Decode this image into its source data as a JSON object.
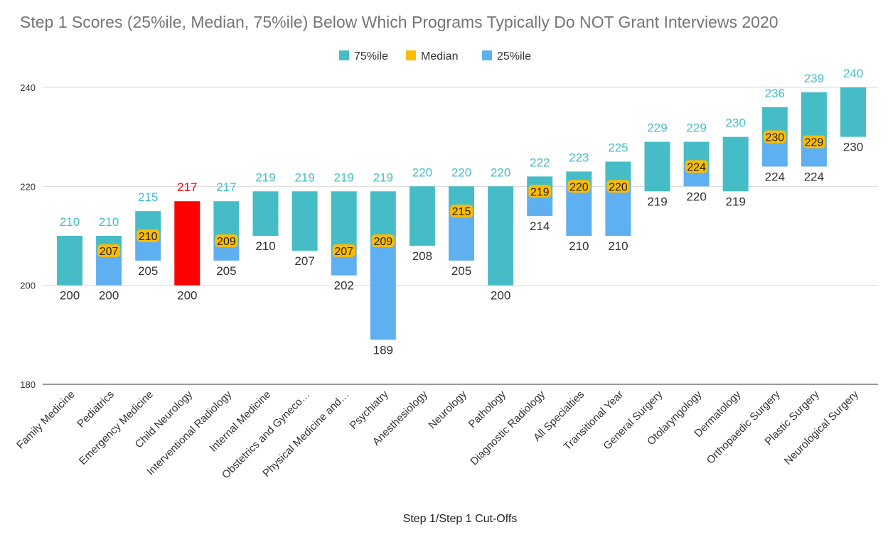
{
  "chart_data": {
    "type": "bar",
    "title": "Step 1 Scores (25%ile, Median, 75%ile) Below Which Programs Typically Do NOT Grant Interviews 2020",
    "xlabel": "Step 1/Step 1 Cut-Offs",
    "ylabel": "",
    "ylim": [
      180,
      240
    ],
    "yticks": [
      180,
      200,
      220,
      240
    ],
    "grid": true,
    "legend_position": "top",
    "legend": [
      {
        "name": "75%ile",
        "color": "#46bdc6"
      },
      {
        "name": "Median",
        "color": "#fbbc04"
      },
      {
        "name": "25%ile",
        "color": "#5fb0f0"
      }
    ],
    "highlight_color": "#ff0000",
    "highlight_category": "Child Neurology",
    "categories": [
      "Family Medicine",
      "Pediatrics",
      "Emergency Medicine",
      "Child Neurology",
      "Interventional Radiology",
      "Internal Medicine",
      "Obstetrics and Gyneco…",
      "Physical Medicine and…",
      "Psychiatry",
      "Anesthesiology",
      "Neurology",
      "Pathology",
      "Diagnostic Radiology",
      "All Specialties",
      "Transitional Year",
      "General Surgery",
      "Otolaryngology",
      "Dermatology",
      "Orthopaedic Surgery",
      "Plastic Surgery",
      "Neurological Surgery"
    ],
    "series": [
      {
        "name": "25%ile",
        "values": [
          200,
          200,
          205,
          200,
          205,
          210,
          207,
          202,
          189,
          208,
          205,
          200,
          214,
          210,
          210,
          219,
          220,
          219,
          224,
          224,
          230
        ]
      },
      {
        "name": "Median",
        "values": [
          null,
          207,
          210,
          null,
          209,
          null,
          null,
          207,
          209,
          null,
          215,
          null,
          219,
          220,
          220,
          null,
          224,
          null,
          230,
          229,
          null
        ]
      },
      {
        "name": "75%ile",
        "values": [
          210,
          210,
          215,
          217,
          217,
          219,
          219,
          219,
          219,
          220,
          220,
          220,
          222,
          223,
          225,
          229,
          229,
          230,
          236,
          239,
          240
        ]
      }
    ]
  }
}
